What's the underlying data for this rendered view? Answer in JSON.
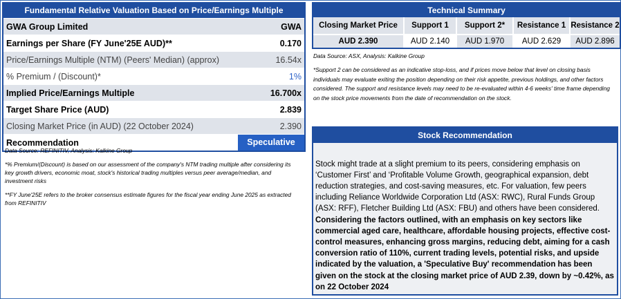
{
  "valuation": {
    "title": "Fundamental Relative Valuation Based on Price/Earnings Multiple",
    "rows": [
      {
        "label": "GWA Group Limited",
        "value": "GWA"
      },
      {
        "label": "Earnings per Share (FY June'25E AUD)**",
        "value": "0.170"
      },
      {
        "label": "Price/Earnings Multiple (NTM)  (Peers' Median) (approx)",
        "value": "16.54x"
      },
      {
        "label": "% Premium / (Discount)*",
        "value": "1%"
      },
      {
        "label": "Implied Price/Earnings Multiple",
        "value": "16.700x"
      },
      {
        "label": "Target Share Price (AUD)",
        "value": "2.839"
      },
      {
        "label": "Closing Market Price (in AUD) (22 October 2024)",
        "value": "2.390"
      },
      {
        "label": "Recommendation",
        "value": "Speculative Buy"
      }
    ],
    "source": "Data Source: REFINITIV, Analysis: Kalkine Group",
    "note1": "*% Premium/(Discount) is based on our assessment of the company's NTM trading multiple after considering its key growth drivers, economic moat, stock's historical trading multiples versus peer average/median, and investment risks",
    "note2": "**FY June'25E refers to the broker consensus estimate figures for the fiscal year ending June 2025  as extracted from REFINITIV"
  },
  "technical": {
    "title": "Technical Summary",
    "headers": [
      "Closing Market Price",
      "Support 1",
      "Support 2*",
      "Resistance 1",
      "Resistance 2"
    ],
    "values": [
      "AUD 2.390",
      "AUD 2.140",
      "AUD 1.970",
      "AUD 2.629",
      "AUD 2.896"
    ],
    "source": "Data Source: ASX, Analysis: Kalkine Group",
    "note": "*Support 2 can be considered as an indicative stop-loss, and if prices move below that level on closing basis individuals may evaluate exiting the position depending on their risk appetite, previous holdings, and other factors considered. The support and resistance levels may need to be re-evaluated within 4-6 weeks' time frame depending on the stock price movements from the date of recommendation on the stock."
  },
  "recommendation": {
    "title": "Stock Recommendation",
    "text_regular": "Stock might trade at a slight premium to its peers, considering emphasis on ‘Customer First’ and ‘Profitable Volume Growth, geographical expansion, debt reduction strategies, and cost-saving measures, etc. For valuation, few peers including Reliance Worldwide Corporation Ltd (ASX: RWC), Rural Funds Group (ASX: RFF), Fletcher Building Ltd (ASX: FBU) and others have been considered. ",
    "text_bold": "Considering the factors outlined, with an emphasis on key sectors like commercial aged care, healthcare, affordable housing projects, effective cost-control measures, enhancing gross margins, reducing debt, aiming for a cash conversion ratio of 110%, current trading levels, potential risks, and upside indicated by the valuation, a 'Speculative Buy' recommendation has been given on the stock at the closing market price of AUD 2.39, down by ~0.42%, as on 22 October 2024"
  },
  "colors": {
    "accent": "#1f4ea0",
    "buy": "#2660c4",
    "shade": "#dfe3ea",
    "premium": "#2d62c8"
  }
}
